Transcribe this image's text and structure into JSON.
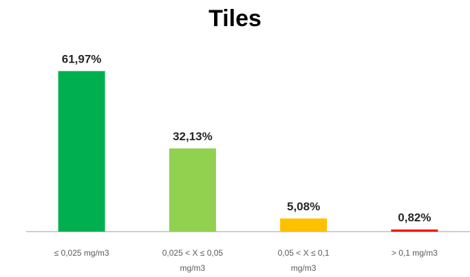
{
  "chart_data": {
    "type": "bar",
    "title": "Tiles",
    "categories": [
      [
        "≤ 0,025 mg/m3"
      ],
      [
        "0,025 < X ≤ 0,05",
        "mg/m3"
      ],
      [
        "0,05 < X ≤ 0,1",
        "mg/m3"
      ],
      [
        "> 0,1 mg/m3"
      ]
    ],
    "values": [
      61.97,
      32.13,
      5.08,
      0.82
    ],
    "data_labels": [
      "61,97%",
      "32,13%",
      "5,08%",
      "0,82%"
    ],
    "colors": [
      "#00b050",
      "#92d050",
      "#ffc000",
      "#ff0000"
    ],
    "ylim": [
      0,
      70
    ],
    "grid": false,
    "legend": "none"
  }
}
